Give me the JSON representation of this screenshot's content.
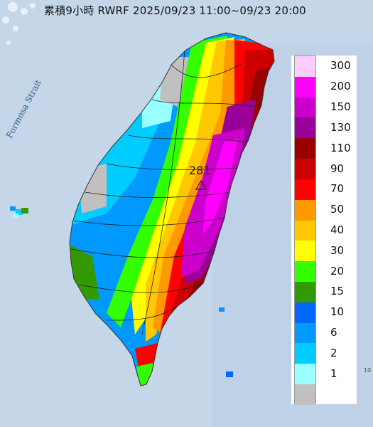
{
  "title": "累積9小時 RWRF 2025/09/23 11:00~09/23 20:00",
  "strait_label": "Formosa Strait",
  "peak_value": "281",
  "edge_label": "10",
  "legend": {
    "items": [
      {
        "label": "300",
        "color": "#ffccff"
      },
      {
        "label": "200",
        "color": "#ff00ff"
      },
      {
        "label": "150",
        "color": "#cc00cc"
      },
      {
        "label": "130",
        "color": "#990099"
      },
      {
        "label": "110",
        "color": "#990000"
      },
      {
        "label": "90",
        "color": "#cc0000"
      },
      {
        "label": "70",
        "color": "#ff0000"
      },
      {
        "label": "50",
        "color": "#ff9900"
      },
      {
        "label": "40",
        "color": "#ffc800"
      },
      {
        "label": "30",
        "color": "#ffff00"
      },
      {
        "label": "20",
        "color": "#33ff00"
      },
      {
        "label": "15",
        "color": "#339900"
      },
      {
        "label": "10",
        "color": "#0066ff"
      },
      {
        "label": "6",
        "color": "#0099ff"
      },
      {
        "label": "2",
        "color": "#00ccff"
      },
      {
        "label": "1",
        "color": "#99ffff"
      },
      {
        "label": "",
        "color": "#c0c0c0"
      }
    ]
  }
}
